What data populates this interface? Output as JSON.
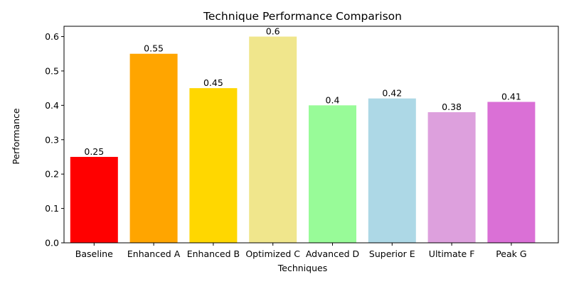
{
  "chart_data": {
    "type": "bar",
    "title": "Technique Performance Comparison",
    "xlabel": "Techniques",
    "ylabel": "Performance",
    "categories": [
      "Baseline",
      "Enhanced A",
      "Enhanced B",
      "Optimized C",
      "Advanced D",
      "Superior E",
      "Ultimate F",
      "Peak G"
    ],
    "values": [
      0.25,
      0.55,
      0.45,
      0.6,
      0.4,
      0.42,
      0.38,
      0.41
    ],
    "value_labels": [
      "0.25",
      "0.55",
      "0.45",
      "0.6",
      "0.4",
      "0.42",
      "0.38",
      "0.41"
    ],
    "colors": [
      "#ff0000",
      "#ffa500",
      "#ffd700",
      "#f0e68c",
      "#98fb98",
      "#add8e6",
      "#dda0dd",
      "#da70d6"
    ],
    "ylim": [
      0,
      0.63
    ],
    "yticks": [
      0.0,
      0.1,
      0.2,
      0.3,
      0.4,
      0.5,
      0.6
    ],
    "ytick_labels": [
      "0.0",
      "0.1",
      "0.2",
      "0.3",
      "0.4",
      "0.5",
      "0.6"
    ],
    "grid": false,
    "legend": "none"
  }
}
